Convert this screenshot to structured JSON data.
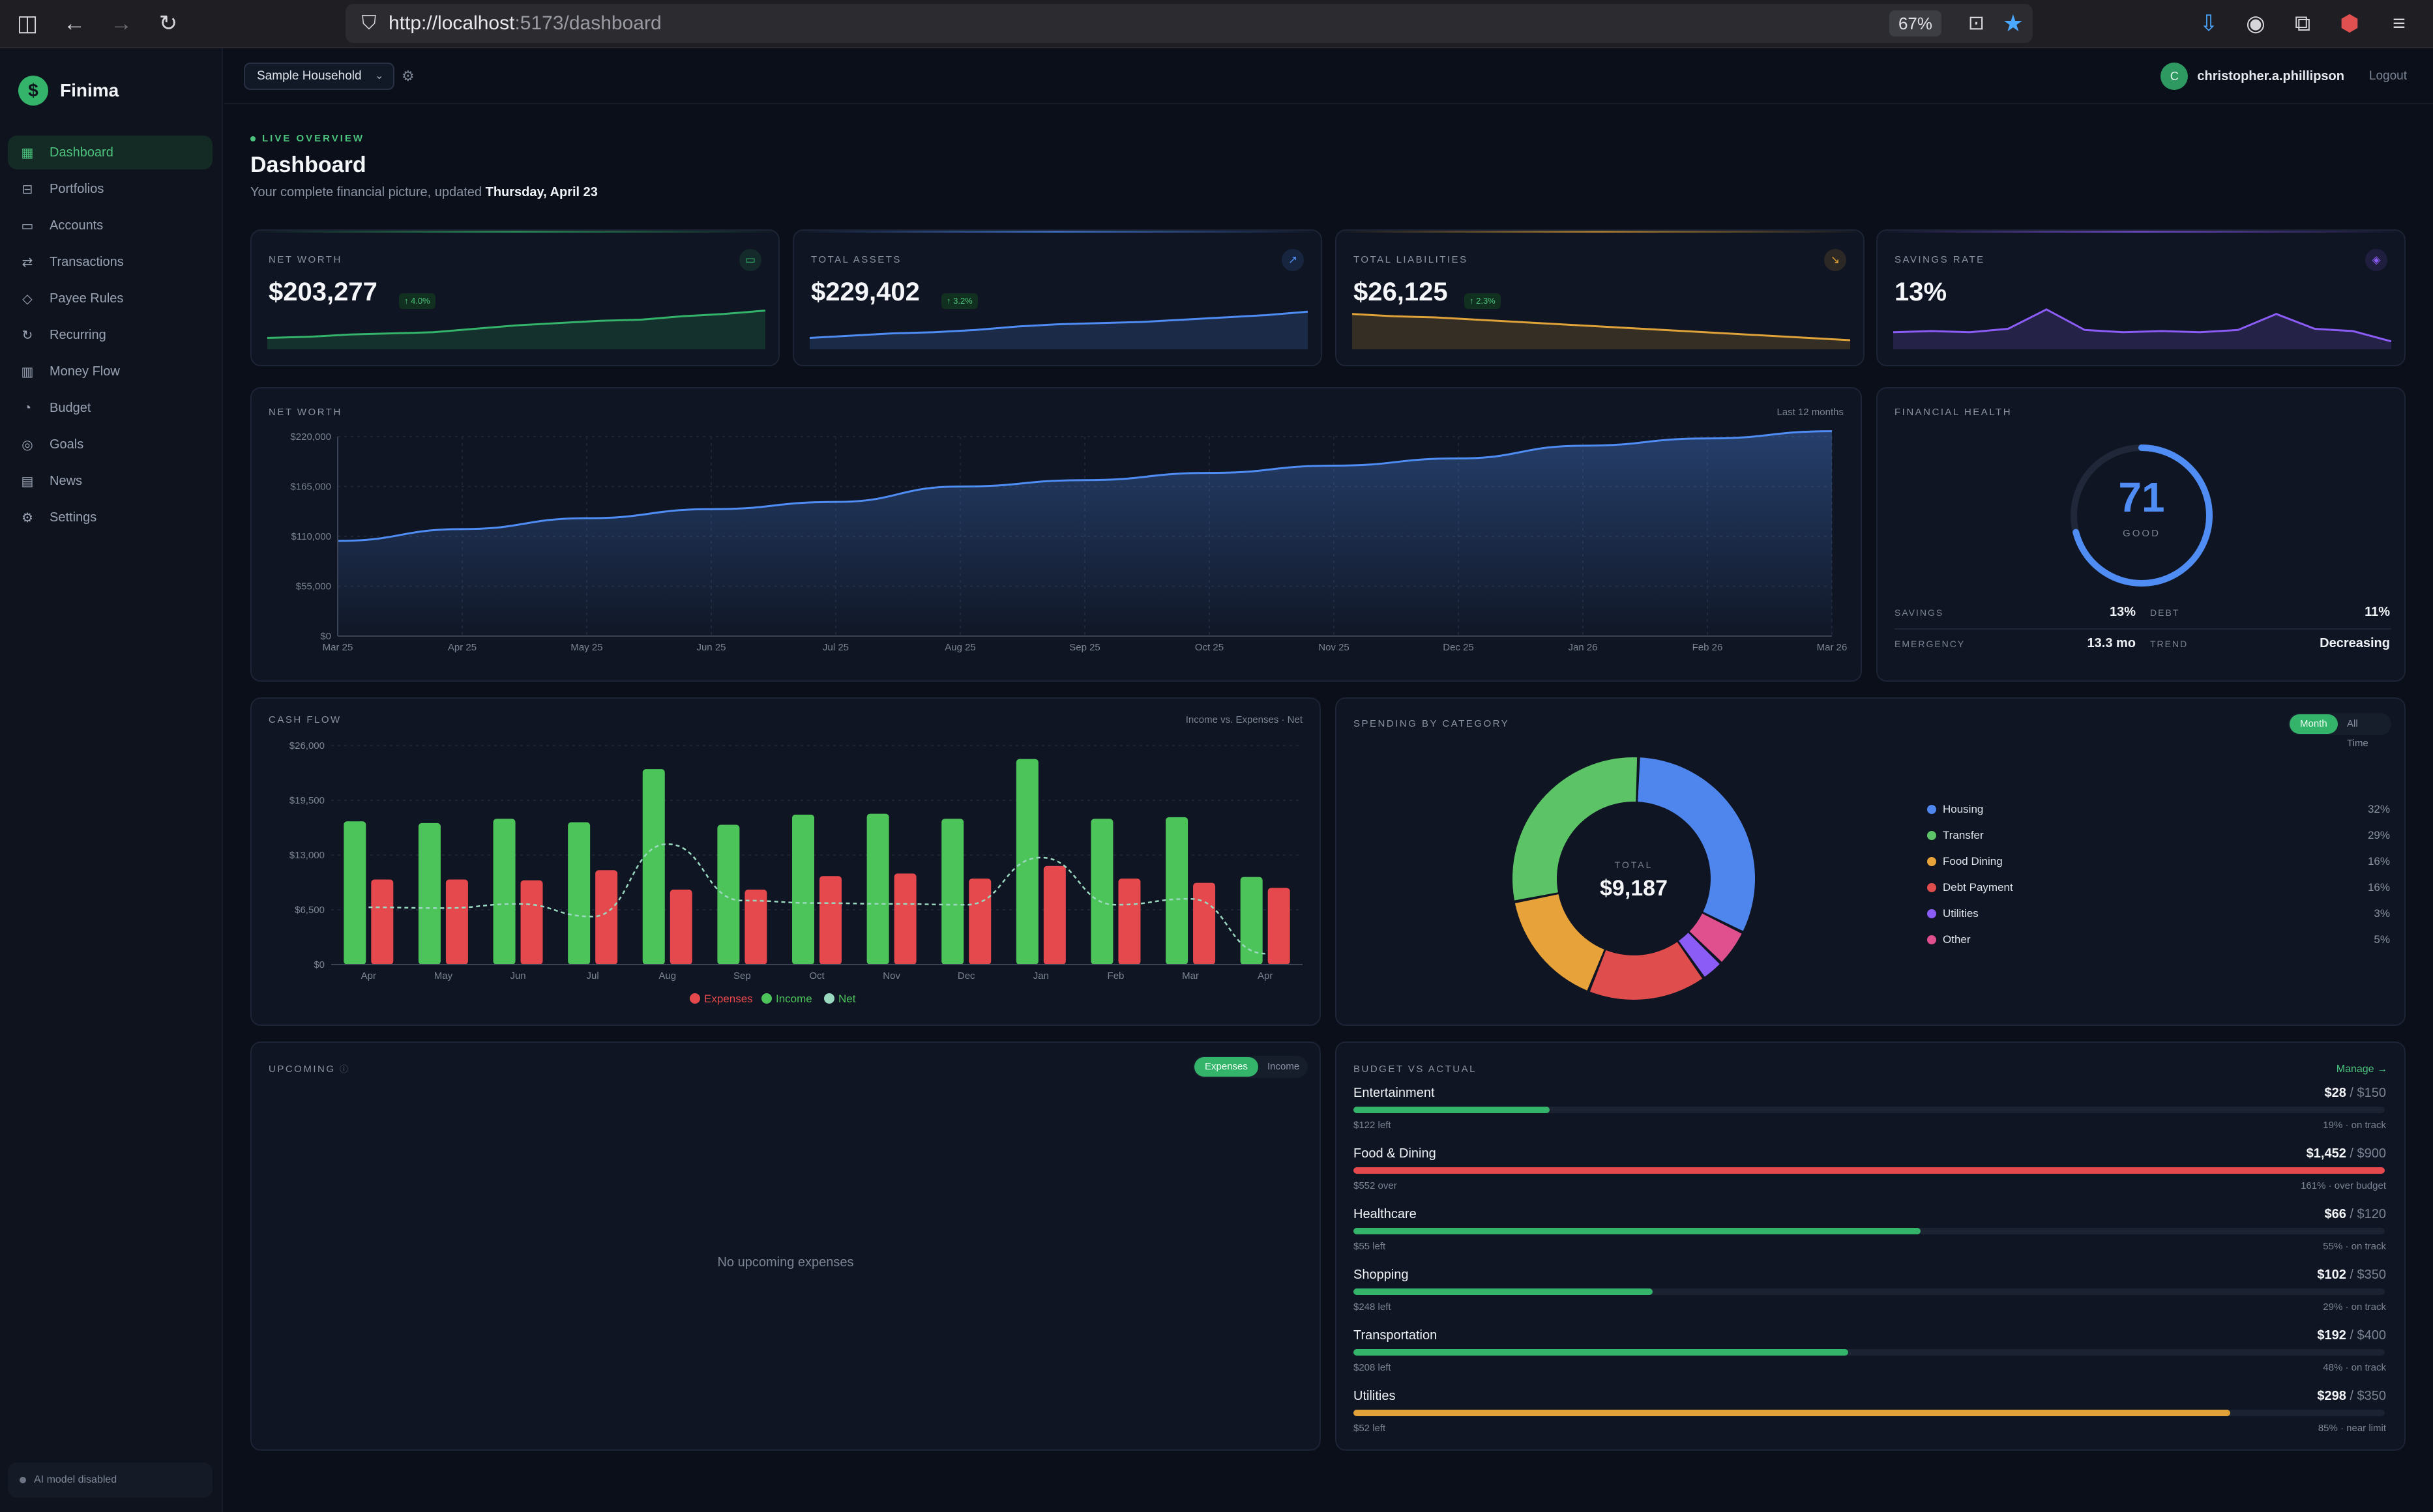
{
  "browser": {
    "url_host": "http://localhost",
    "url_path": ":5173/dashboard",
    "zoom": "67%"
  },
  "sidebar": {
    "brand": "Finima",
    "items": [
      {
        "label": "Dashboard",
        "icon": "grid-icon",
        "glyph": "▦",
        "active": true
      },
      {
        "label": "Portfolios",
        "icon": "briefcase-icon",
        "glyph": "⊟",
        "active": false
      },
      {
        "label": "Accounts",
        "icon": "wallet-icon",
        "glyph": "▭",
        "active": false
      },
      {
        "label": "Transactions",
        "icon": "swap-icon",
        "glyph": "⇄",
        "active": false
      },
      {
        "label": "Payee Rules",
        "icon": "tag-icon",
        "glyph": "◇",
        "active": false
      },
      {
        "label": "Recurring",
        "icon": "repeat-icon",
        "glyph": "↻",
        "active": false
      },
      {
        "label": "Money Flow",
        "icon": "bar-chart-icon",
        "glyph": "▥",
        "active": false
      },
      {
        "label": "Budget",
        "icon": "piggy-bank-icon",
        "glyph": "◔",
        "active": false
      },
      {
        "label": "Goals",
        "icon": "target-icon",
        "glyph": "◎",
        "active": false
      },
      {
        "label": "News",
        "icon": "newspaper-icon",
        "glyph": "▤",
        "active": false
      },
      {
        "label": "Settings",
        "icon": "gear-icon",
        "glyph": "⚙",
        "active": false
      }
    ],
    "ai_status": "AI model disabled"
  },
  "topbar": {
    "household": "Sample Household",
    "user_initial": "C",
    "user_name": "christopher.a.phillipson",
    "logout": "Logout"
  },
  "header": {
    "eyebrow": "LIVE OVERVIEW",
    "title": "Dashboard",
    "subtitle_prefix": "Your complete financial picture, updated",
    "subtitle_date": "Thursday, April 23"
  },
  "stats": [
    {
      "label": "NET WORTH",
      "value": "$203,277",
      "delta": "↑ 4.0%",
      "color": "#34b36a",
      "icon": "wallet-icon",
      "glyph": "▭",
      "spark": [
        20,
        22,
        26,
        28,
        30,
        36,
        42,
        46,
        50,
        52,
        58,
        62,
        68
      ]
    },
    {
      "label": "TOTAL ASSETS",
      "value": "$229,402",
      "delta": "↑ 3.2%",
      "color": "#4f8df5",
      "icon": "trend-up-icon",
      "glyph": "↗",
      "spark": [
        20,
        24,
        28,
        30,
        34,
        40,
        44,
        46,
        48,
        52,
        56,
        60,
        66
      ]
    },
    {
      "label": "TOTAL LIABILITIES",
      "value": "$26,125",
      "delta": "↑ 2.3%",
      "color": "#e0a33a",
      "icon": "trend-down-icon",
      "glyph": "↘",
      "spark": [
        62,
        58,
        56,
        52,
        48,
        44,
        40,
        36,
        32,
        28,
        24,
        20,
        16
      ]
    },
    {
      "label": "SAVINGS RATE",
      "value": "13%",
      "delta": "",
      "color": "#8b5cf6",
      "icon": "layers-icon",
      "glyph": "◈",
      "spark": [
        30,
        32,
        30,
        36,
        70,
        34,
        30,
        32,
        30,
        34,
        62,
        36,
        32,
        14
      ]
    }
  ],
  "networth_card": {
    "label": "NET WORTH",
    "range": "Last 12 months"
  },
  "financial_health": {
    "label": "FINANCIAL HEALTH",
    "score": "71",
    "score_value": 71,
    "rating": "GOOD",
    "savings_label": "SAVINGS",
    "savings_value": "13%",
    "debt_label": "DEBT",
    "debt_value": "11%",
    "emergency_label": "EMERGENCY",
    "emergency_value": "13.3 mo",
    "trend_label": "TREND",
    "trend_value": "Decreasing"
  },
  "cashflow_card": {
    "label": "CASH FLOW",
    "note": "Income vs. Expenses · Net"
  },
  "spending_card": {
    "label": "SPENDING BY CATEGORY",
    "toggle_month": "Month",
    "toggle_all": "All Time",
    "total_label": "TOTAL",
    "total_value": "$9,187"
  },
  "upcoming_card": {
    "label": "UPCOMING",
    "toggle_expenses": "Expenses",
    "toggle_income": "Income",
    "empty": "No upcoming expenses"
  },
  "budget_card": {
    "label": "BUDGET VS ACTUAL",
    "manage": "Manage →",
    "items": [
      {
        "name": "Entertainment",
        "spent": "$28",
        "limit": "/ $150",
        "left": "$122 left",
        "status": "19% · on track",
        "pct": 19,
        "color": "#34b36a"
      },
      {
        "name": "Food & Dining",
        "spent": "$1,452",
        "limit": "/ $900",
        "left": "$552 over",
        "status": "161% · over budget",
        "pct": 100,
        "color": "#e5484d"
      },
      {
        "name": "Healthcare",
        "spent": "$66",
        "limit": "/ $120",
        "left": "$55 left",
        "status": "55% · on track",
        "pct": 55,
        "color": "#34b36a"
      },
      {
        "name": "Shopping",
        "spent": "$102",
        "limit": "/ $350",
        "left": "$248 left",
        "status": "29% · on track",
        "pct": 29,
        "color": "#34b36a"
      },
      {
        "name": "Transportation",
        "spent": "$192",
        "limit": "/ $400",
        "left": "$208 left",
        "status": "48% · on track",
        "pct": 48,
        "color": "#34b36a"
      },
      {
        "name": "Utilities",
        "spent": "$298",
        "limit": "/ $350",
        "left": "$52 left",
        "status": "85% · near limit",
        "pct": 85,
        "color": "#e0a33a"
      }
    ]
  },
  "chart_data": [
    {
      "type": "area",
      "title": "NET WORTH",
      "x": [
        "Mar 25",
        "Apr 25",
        "May 25",
        "Jun 25",
        "Jul 25",
        "Aug 25",
        "Sep 25",
        "Oct 25",
        "Nov 25",
        "Dec 25",
        "Jan 26",
        "Feb 26",
        "Mar 26"
      ],
      "yticks": [
        "$220,000",
        "$165,000",
        "$110,000",
        "$55,000",
        "$0"
      ],
      "ylim": [
        0,
        220000
      ],
      "series": [
        {
          "values": [
            105000,
            118000,
            130000,
            140000,
            148000,
            165000,
            172000,
            180000,
            188000,
            196000,
            210000,
            218000,
            226000
          ]
        }
      ],
      "color": "#4f8df5",
      "grid": true
    },
    {
      "type": "bar",
      "title": "CASH FLOW",
      "categories": [
        "Apr",
        "May",
        "Jun",
        "Jul",
        "Aug",
        "Sep",
        "Oct",
        "Nov",
        "Dec",
        "Jan",
        "Feb",
        "Mar",
        "Apr"
      ],
      "yticks": [
        "$26,000",
        "$19,500",
        "$13,000",
        "$6,500",
        "$0"
      ],
      "ylim": [
        0,
        26000
      ],
      "series": [
        {
          "name": "Income",
          "color": "#4cc45a",
          "values": [
            17000,
            16800,
            17300,
            16900,
            23200,
            16600,
            17800,
            17900,
            17300,
            24400,
            17300,
            17500,
            10400
          ]
        },
        {
          "name": "Expenses",
          "color": "#e5484d",
          "values": [
            10100,
            10100,
            10000,
            11200,
            8900,
            8900,
            10500,
            10800,
            10200,
            11700,
            10200,
            9700,
            9100
          ]
        },
        {
          "name": "Net",
          "color": "#9ad8c0",
          "values": [
            6800,
            6700,
            7200,
            5700,
            14300,
            7600,
            7300,
            7200,
            7100,
            12700,
            7100,
            7800,
            1300
          ]
        }
      ],
      "legend": "bottom"
    },
    {
      "type": "pie",
      "title": "SPENDING BY CATEGORY",
      "categories": [
        "Housing",
        "Transfer",
        "Food Dining",
        "Debt Payment",
        "Utilities",
        "Other"
      ],
      "values": [
        32,
        29,
        16,
        16,
        3,
        5
      ],
      "labels": [
        "32%",
        "29%",
        "16%",
        "16%",
        "3%",
        "5%"
      ],
      "colors": [
        "#4f86ee",
        "#5cc366",
        "#e8a23a",
        "#e04d4d",
        "#8b5cf6",
        "#e04f8e"
      ],
      "order": [
        0,
        5,
        4,
        3,
        2,
        1
      ],
      "legend": "right"
    }
  ]
}
